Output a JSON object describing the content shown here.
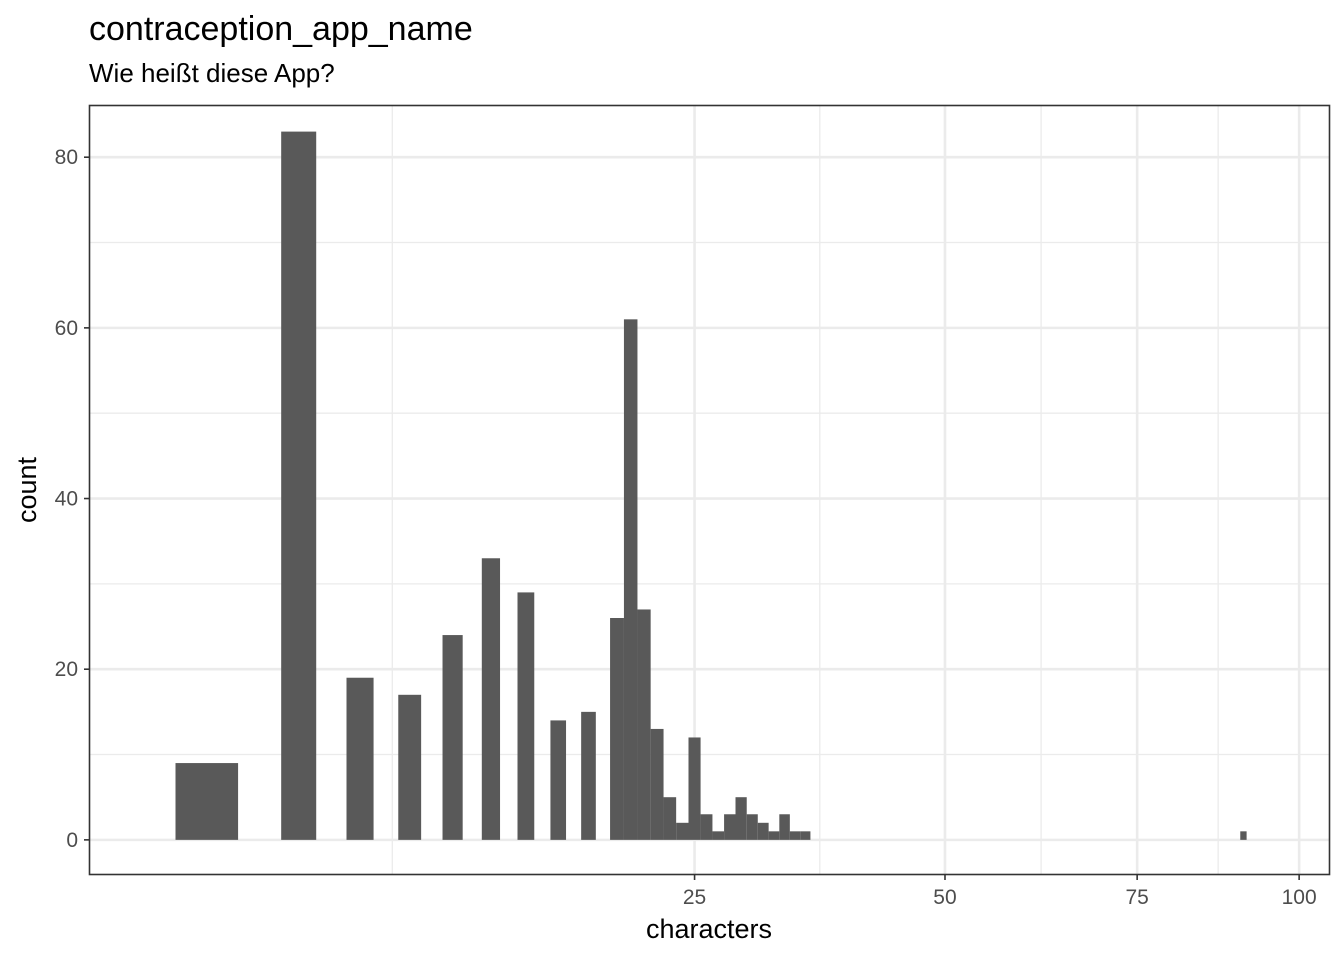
{
  "chart_data": {
    "type": "bar",
    "title": "contraception_app_name",
    "subtitle": "Wie heißt diese App?",
    "xlabel": "characters",
    "ylabel": "count",
    "x_scale": "sqrt",
    "xlim": [
      0,
      105
    ],
    "ylim": [
      -4,
      86
    ],
    "x_ticks": [
      25,
      50,
      75,
      100
    ],
    "y_ticks": [
      0,
      20,
      40,
      60,
      80
    ],
    "grid": true,
    "bar_color": "#595959",
    "x": [
      1,
      3,
      5,
      7,
      9,
      11,
      13,
      15,
      17,
      19,
      20,
      21,
      22,
      23,
      24,
      25,
      26,
      27,
      28,
      29,
      30,
      31,
      32,
      33,
      34,
      35,
      91
    ],
    "values": [
      9,
      83,
      19,
      17,
      24,
      33,
      29,
      14,
      15,
      26,
      61,
      27,
      13,
      5,
      2,
      12,
      3,
      1,
      3,
      5,
      3,
      2,
      1,
      3,
      1,
      1,
      1
    ]
  }
}
